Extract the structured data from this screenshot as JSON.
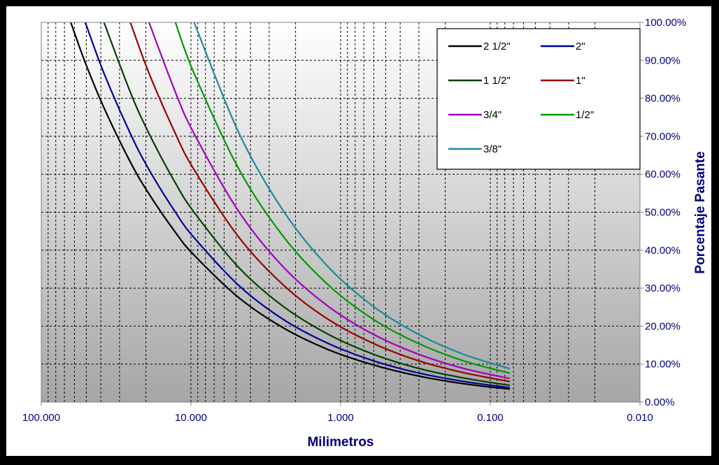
{
  "chart_data": {
    "type": "line",
    "xlabel": "Milimetros",
    "ylabel": "Porcentaje Pasante",
    "x_scale": "log",
    "x_reversed": true,
    "xlim": [
      100,
      0.01
    ],
    "ylim": [
      0,
      100
    ],
    "x_tick_labels": [
      "100.000",
      "10.000",
      "1.000",
      "0.100",
      "0.010"
    ],
    "x_tick_values": [
      100,
      10,
      1,
      0.1,
      0.01
    ],
    "y_tick_labels": [
      "0.00%",
      "10.00%",
      "20.00%",
      "30.00%",
      "40.00%",
      "50.00%",
      "60.00%",
      "70.00%",
      "80.00%",
      "90.00%",
      "100.00%"
    ],
    "y_tick_values": [
      0,
      10,
      20,
      30,
      40,
      50,
      60,
      70,
      80,
      90,
      100
    ],
    "grid": true,
    "legend_position": "top-right",
    "x": [
      63.5,
      50.8,
      38.1,
      25.4,
      19.05,
      12.7,
      9.525,
      4.76,
      2.38,
      1.19,
      0.595,
      0.297,
      0.149,
      0.074
    ],
    "series": [
      {
        "name": "2 1/2\"",
        "color": "#000000",
        "values": [
          100,
          89.4,
          77.5,
          63.2,
          54.8,
          44.7,
          38.7,
          27.4,
          19.4,
          13.7,
          9.7,
          6.8,
          4.8,
          3.4
        ]
      },
      {
        "name": "2\"",
        "color": "#000099",
        "values": [
          null,
          100,
          86.6,
          70.7,
          61.2,
          50,
          43.3,
          30.6,
          21.6,
          15.3,
          10.8,
          7.6,
          5.4,
          3.8
        ]
      },
      {
        "name": "1 1/2\"",
        "color": "#004000",
        "values": [
          null,
          null,
          100,
          81.6,
          70.7,
          57.7,
          50,
          35.3,
          25,
          17.7,
          12.5,
          8.8,
          6.3,
          4.4
        ]
      },
      {
        "name": "1\"",
        "color": "#990000",
        "values": [
          null,
          null,
          null,
          100,
          86.6,
          70.7,
          61.2,
          43.3,
          30.6,
          21.6,
          15.3,
          10.8,
          7.7,
          5.4
        ]
      },
      {
        "name": "3/4\"",
        "color": "#a000c0",
        "values": [
          null,
          null,
          null,
          null,
          100,
          81.6,
          70.7,
          50,
          35.3,
          25,
          17.7,
          12.5,
          8.8,
          6.2
        ]
      },
      {
        "name": "1/2\"",
        "color": "#009900",
        "values": [
          null,
          null,
          null,
          null,
          null,
          100,
          86.6,
          61.2,
          43.3,
          30.6,
          21.6,
          15.3,
          10.8,
          7.6
        ]
      },
      {
        "name": "3/8\"",
        "color": "#1b8a99",
        "values": [
          null,
          null,
          null,
          null,
          null,
          null,
          100,
          70.7,
          50,
          35.3,
          25,
          17.7,
          12.5,
          8.8
        ]
      }
    ]
  }
}
